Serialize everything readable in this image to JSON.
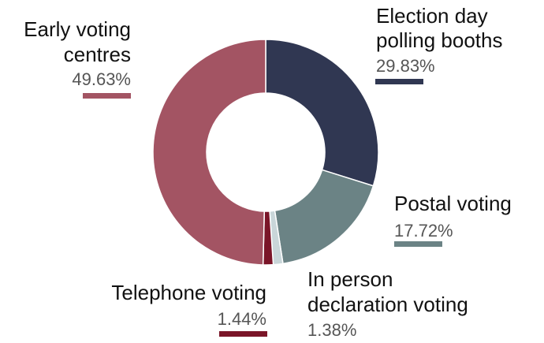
{
  "chart_data": {
    "type": "pie",
    "subtype": "donut",
    "start_angle_deg": 0,
    "direction": "clockwise",
    "series": [
      {
        "name": "Election day\npolling booths",
        "line1": "Election day",
        "line2": "polling booths",
        "value": 29.83,
        "label": "29.83%",
        "color": "#303752"
      },
      {
        "name": "Postal voting",
        "line1": "Postal voting",
        "line2": "",
        "value": 17.72,
        "label": "17.72%",
        "color": "#6b8385"
      },
      {
        "name": "In person\ndeclaration voting",
        "line1": "In person",
        "line2": "declaration voting",
        "value": 1.38,
        "label": "1.38%",
        "color": "#c9d6d9"
      },
      {
        "name": "Telephone voting",
        "line1": "Telephone voting",
        "line2": "",
        "value": 1.44,
        "label": "1.44%",
        "color": "#7a1528"
      },
      {
        "name": "Early voting\ncentres",
        "line1": "Early voting",
        "line2": "centres",
        "value": 49.63,
        "label": "49.63%",
        "color": "#a35463"
      }
    ]
  }
}
